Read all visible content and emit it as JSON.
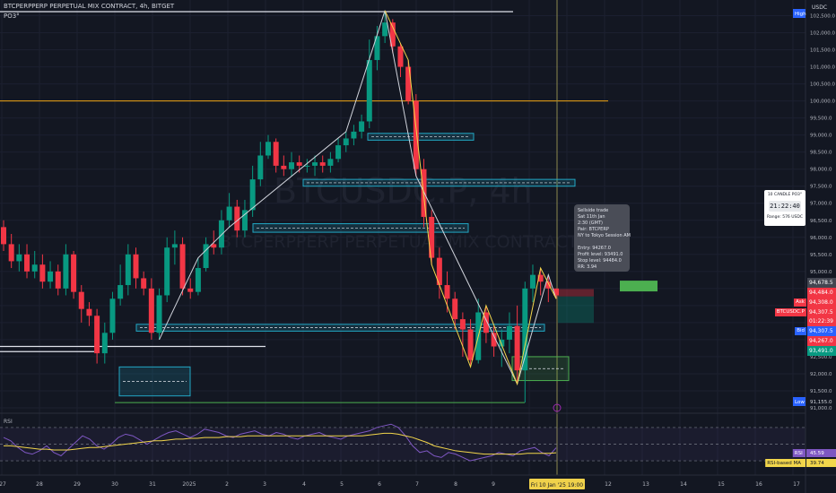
{
  "header": {
    "symbol_line": "BTCPERPPERP PERPETUAL MIX CONTRACT, 4h, BITGET",
    "indicator": "PO3°"
  },
  "watermark": {
    "line1": "BTCUSDC.P, 4h",
    "line2": "BTCPERPPERP PERPETUAL MIX CONTRACT"
  },
  "price_axis": {
    "currency": "USDC",
    "high_tag": "High",
    "low_tag": "Low",
    "low_value": "91,155.0",
    "ticks": [
      "102,500.0",
      "102,000.0",
      "101,500.0",
      "101,000.0",
      "100,500.0",
      "100,000.0",
      "99,500.0",
      "99,000.0",
      "98,500.0",
      "98,000.0",
      "97,500.0",
      "97,000.0",
      "96,500.0",
      "96,000.0",
      "95,500.0",
      "95,000.0",
      "92,500.0",
      "92,000.0",
      "91,500.0",
      "91,000.0"
    ],
    "price_labels": [
      {
        "value": "94,678.5",
        "color": "#434651",
        "tag": ""
      },
      {
        "value": "94,484.0",
        "color": "#f23645",
        "tag": ""
      },
      {
        "value": "94,308.0",
        "color": "#f23645",
        "tag": "Ask"
      },
      {
        "value": "94,307.5",
        "color": "#f23645",
        "tag": "BTCUSDC.P"
      },
      {
        "value": "01:22:39",
        "color": "#f23645",
        "tag": ""
      },
      {
        "value": "94,307.5",
        "color": "#2962ff",
        "tag": "Bid"
      },
      {
        "value": "94,267.0",
        "color": "#f23645",
        "tag": ""
      },
      {
        "value": "93,491.0",
        "color": "#089981",
        "tag": ""
      }
    ]
  },
  "time_axis": {
    "labels": [
      "27",
      "28",
      "29",
      "30",
      "31",
      "2025",
      "2",
      "3",
      "4",
      "5",
      "6",
      "7",
      "8",
      "9",
      "Fri 10 Jan '25",
      "19:00",
      "12",
      "13",
      "14",
      "15",
      "16",
      "17"
    ],
    "current": "Fri 10 Jan '25   19:00"
  },
  "trade_tooltip": {
    "lines": [
      "Sellside trade",
      "Sat 11th Jan",
      "2:30 (GMT)",
      "Pair: BTCPERP",
      "NY to Tokyo Session AM",
      "",
      "Entry: 94267.0",
      "Profit level: 93491.0",
      "Stop level: 94484.0",
      "RR: 3.94"
    ]
  },
  "candle_card": {
    "title": "10 CANDLE PO3°",
    "clock": "21:22:40",
    "range": "Range: 576 USDC"
  },
  "rsi": {
    "label": "RSI",
    "levels": [
      "80.00",
      "60.00",
      "40.00",
      "20.00"
    ],
    "value": "45.59",
    "ma_label": "RSI-based MA",
    "ma_value": "39.74",
    "values": [
      58,
      54,
      46,
      40,
      38,
      42,
      48,
      40,
      36,
      44,
      52,
      60,
      56,
      48,
      44,
      50,
      58,
      62,
      60,
      55,
      50,
      55,
      60,
      64,
      66,
      62,
      58,
      62,
      68,
      66,
      64,
      60,
      58,
      62,
      64,
      66,
      62,
      60,
      64,
      62,
      58,
      56,
      60,
      62,
      64,
      60,
      58,
      56,
      60,
      62,
      64,
      66,
      70,
      72,
      74,
      70,
      60,
      48,
      40,
      42,
      36,
      34,
      40,
      38,
      34,
      30,
      32,
      34,
      36,
      40,
      38,
      36,
      42,
      44,
      46,
      40,
      36,
      45.6
    ],
    "ma_values": [
      48,
      48,
      47,
      46,
      45,
      44,
      44,
      43,
      43,
      43,
      44,
      45,
      46,
      46,
      47,
      48,
      49,
      50,
      51,
      52,
      53,
      54,
      54,
      55,
      56,
      56,
      57,
      57,
      58,
      58,
      58,
      59,
      59,
      59,
      60,
      60,
      60,
      60,
      60,
      60,
      60,
      60,
      60,
      60,
      60,
      60,
      60,
      60,
      60,
      60,
      60,
      61,
      62,
      63,
      63,
      62,
      60,
      58,
      55,
      52,
      48,
      46,
      44,
      42,
      41,
      40,
      39,
      38,
      38,
      38,
      38,
      38,
      38,
      39,
      39,
      39,
      39,
      39.7
    ]
  },
  "chart_data": {
    "type": "candlestick",
    "timeframe": "4h",
    "ylim": [
      91000,
      102750
    ],
    "opens": [
      96300,
      95800,
      95300,
      95500,
      95000,
      95200,
      94700,
      95000,
      94500,
      95500,
      94400,
      93900,
      93700,
      92600,
      93200,
      94200,
      94600,
      95500,
      94800,
      94500,
      93200,
      94300,
      95700,
      95800,
      94500,
      94400,
      95100,
      95800,
      95700,
      96500,
      96900,
      96200,
      96800,
      97700,
      98400,
      98800,
      98100,
      98000,
      98200,
      98100,
      98100,
      98200,
      98100,
      98300,
      98700,
      98900,
      99100,
      99400,
      101200,
      101900,
      102300,
      101600,
      101000,
      100000,
      98000,
      96600,
      95400,
      94600,
      94200,
      93600,
      93300,
      92400,
      93800,
      93200,
      92800,
      93000,
      93400,
      92100,
      94500,
      94900,
      94700,
      94500
    ],
    "closes": [
      95800,
      95300,
      95500,
      95000,
      95200,
      94700,
      95000,
      94500,
      95500,
      94400,
      93900,
      93700,
      92600,
      93200,
      94200,
      94600,
      95500,
      94800,
      94500,
      93200,
      94300,
      95700,
      95800,
      94500,
      94400,
      95100,
      95800,
      95700,
      96500,
      96900,
      96200,
      96800,
      97700,
      98400,
      98800,
      98100,
      98000,
      98200,
      98100,
      98100,
      98200,
      98100,
      98300,
      98700,
      98900,
      99100,
      99400,
      101200,
      101900,
      102300,
      101600,
      101000,
      100000,
      98000,
      96600,
      95400,
      94600,
      94200,
      93600,
      93300,
      92400,
      93800,
      93200,
      92800,
      93000,
      93400,
      92100,
      94500,
      94900,
      94700,
      94500,
      94300
    ],
    "highs": [
      96500,
      96100,
      95800,
      95800,
      95600,
      95500,
      95300,
      95200,
      95800,
      95600,
      94600,
      94100,
      93900,
      93500,
      94400,
      95200,
      95800,
      95700,
      95000,
      94800,
      94500,
      96000,
      96200,
      96000,
      94800,
      95400,
      96000,
      96200,
      96800,
      97300,
      97100,
      97100,
      98100,
      98800,
      99000,
      98900,
      98400,
      98500,
      98400,
      98300,
      98400,
      98400,
      98500,
      98900,
      99100,
      99300,
      99600,
      101800,
      102200,
      102650,
      102400,
      101700,
      101200,
      100200,
      98300,
      96800,
      95700,
      95000,
      94400,
      93800,
      93600,
      94200,
      94000,
      93400,
      93300,
      93800,
      94000,
      94700,
      95200,
      95100,
      94900,
      94500
    ],
    "lows": [
      95600,
      95100,
      95000,
      94800,
      94800,
      94500,
      94500,
      94300,
      94300,
      94200,
      93500,
      93400,
      92300,
      92300,
      93000,
      94000,
      94300,
      94500,
      94300,
      93000,
      93000,
      94100,
      95200,
      94300,
      94200,
      94300,
      95000,
      95500,
      95500,
      96300,
      96000,
      96000,
      96600,
      97500,
      98300,
      97900,
      97800,
      97800,
      97900,
      97900,
      97800,
      97900,
      97900,
      98200,
      98500,
      98700,
      98900,
      99200,
      100900,
      101700,
      101400,
      100700,
      99900,
      97800,
      96300,
      95200,
      94200,
      93800,
      93300,
      92500,
      92200,
      92300,
      92900,
      92500,
      92200,
      92600,
      91700,
      91155,
      94100,
      94300,
      94100,
      94200
    ],
    "pd_arrays": [
      {
        "kind": "fvg",
        "low": 98850,
        "high": 99050
      },
      {
        "kind": "fvg",
        "low": 97500,
        "high": 97700
      },
      {
        "kind": "fvg",
        "low": 96150,
        "high": 96400
      },
      {
        "kind": "fvg",
        "low": 93250,
        "high": 93450
      },
      {
        "kind": "fvg",
        "low": 91350,
        "high": 92200
      },
      {
        "kind": "target",
        "low": 91800,
        "high": 92500
      }
    ],
    "key_levels": [
      {
        "name": "round",
        "value": 100000,
        "color": "#f0a513"
      },
      {
        "name": "low",
        "value": 91155,
        "color": "#4caf50"
      }
    ]
  }
}
